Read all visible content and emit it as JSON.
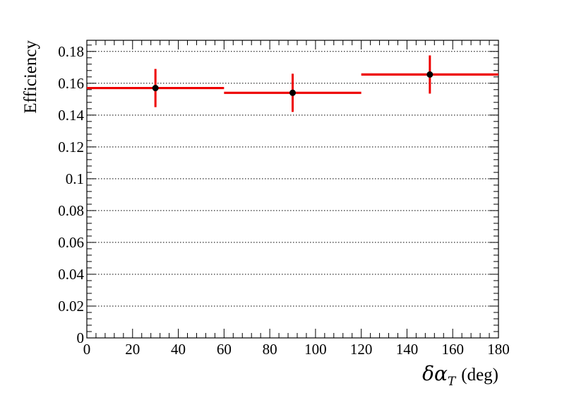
{
  "chart_data": {
    "type": "scatter",
    "xlabel_symbol": "δα",
    "xlabel_subscript": "T",
    "xlabel_unit": "(deg)",
    "ylabel": "Efficiency",
    "xlim": [
      0,
      180
    ],
    "ylim": [
      0,
      0.187
    ],
    "x_ticks": [
      0,
      20,
      40,
      60,
      80,
      100,
      120,
      140,
      160,
      180
    ],
    "x_tick_labels": [
      "0",
      "20",
      "40",
      "60",
      "80",
      "100",
      "120",
      "140",
      "160",
      "180"
    ],
    "y_ticks": [
      0,
      0.02,
      0.04,
      0.06,
      0.08,
      0.1,
      0.12,
      0.14,
      0.16,
      0.18
    ],
    "y_tick_labels": [
      "0",
      "0.02",
      "0.04",
      "0.06",
      "0.08",
      "0.1",
      "0.12",
      "0.14",
      "0.16",
      "0.18"
    ],
    "grid": {
      "horizontal": true,
      "vertical": false,
      "style": "dotted"
    },
    "bin_color": "#ee0000",
    "marker_color": "#000000",
    "series": [
      {
        "bins": [
          {
            "x_low": 0,
            "x_high": 60,
            "value": 0.157
          },
          {
            "x_low": 60,
            "x_high": 120,
            "value": 0.154
          },
          {
            "x_low": 120,
            "x_high": 180,
            "value": 0.1655
          }
        ],
        "points": [
          {
            "x": 30,
            "y": 0.157,
            "err_low": 0.012,
            "err_high": 0.012
          },
          {
            "x": 90,
            "y": 0.154,
            "err_low": 0.012,
            "err_high": 0.012
          },
          {
            "x": 150,
            "y": 0.1655,
            "err_low": 0.012,
            "err_high": 0.012
          }
        ]
      }
    ]
  }
}
